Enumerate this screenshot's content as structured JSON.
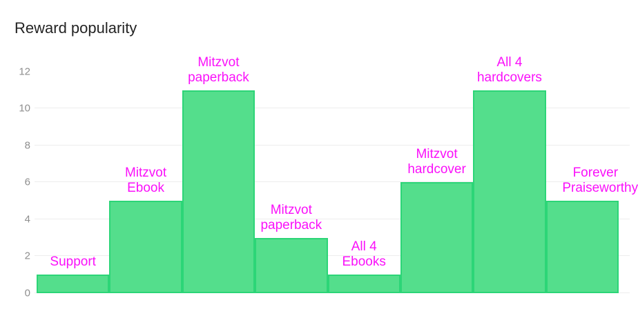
{
  "title": "Reward popularity",
  "colors": {
    "background": "#ffffff",
    "title_text": "#242424",
    "bar_fill": "#54de8c",
    "bar_border": "#2cd577",
    "label_text": "#fa10fa",
    "gridline": "#ededed",
    "tick_text": "#8e8e8e"
  },
  "chart_data": {
    "type": "bar",
    "title": "Reward popularity",
    "categories": [
      "Support",
      "Mitzvot Ebook",
      "Mitzvot paperback",
      "Mitzvot paperback",
      "All 4 Ebooks",
      "Mitzvot hardcover",
      "All 4 hardcovers",
      "Forever Praiseworthy"
    ],
    "values": [
      1,
      5,
      11,
      3,
      1,
      6,
      11,
      5
    ],
    "xlabel": "",
    "ylabel": "",
    "ylim": [
      0,
      12
    ],
    "yticks": [
      0,
      2,
      4,
      6,
      8,
      10,
      12
    ],
    "gridline_values": [
      0,
      2,
      4,
      6,
      8,
      10
    ],
    "grid": "horizontal",
    "legend": "none",
    "bar_labels_position": "above-bar",
    "bar_label_color": "#fa10fa",
    "bar_color": "#54de8c",
    "bar_border_color": "#2cd577"
  }
}
